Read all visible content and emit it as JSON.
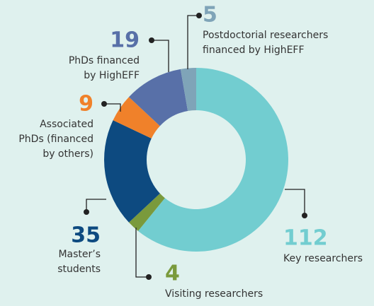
{
  "chart_data": {
    "type": "donut",
    "categories": [
      [
        "Key researchers"
      ],
      [
        "Visiting researchers"
      ],
      [
        "Master’s",
        "students"
      ],
      [
        "Associated",
        "PhDs (financed",
        "by others)"
      ],
      [
        "PhDs financed",
        "by HighEFF"
      ],
      [
        "Postdoctorial researchers",
        "financed by HighEFF"
      ]
    ],
    "values": [
      112,
      4,
      35,
      9,
      19,
      5
    ],
    "colors": [
      "#72cdd0",
      "#7a9a3c",
      "#0d4a80",
      "#f0812a",
      "#5870a8",
      "#7fa4b8"
    ]
  }
}
